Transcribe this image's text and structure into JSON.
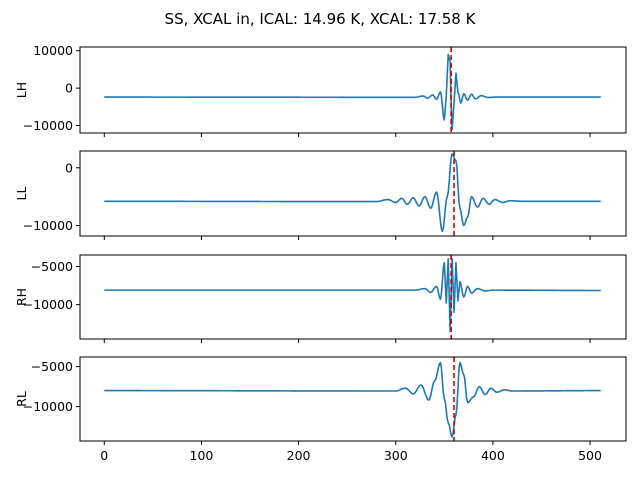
{
  "figure": {
    "title": "SS, XCAL in, ICAL: 14.96 K, XCAL: 17.58 K"
  },
  "chart_data": [
    {
      "type": "line",
      "ylabel": "LH",
      "xlim": [
        -25,
        537
      ],
      "ylim": [
        -12000,
        11000
      ],
      "xticks": [
        0,
        100,
        200,
        300,
        400,
        500
      ],
      "xtick_labels": [],
      "yticks": [
        -10000,
        0,
        10000
      ],
      "ytick_labels": [
        "−10000",
        "0",
        "10000"
      ],
      "marker_x": 357,
      "baseline": -2400,
      "points": [
        [
          0,
          -2400
        ],
        [
          320,
          -2450
        ],
        [
          328,
          -2100
        ],
        [
          333,
          -2700
        ],
        [
          338,
          -1800
        ],
        [
          342,
          -3000
        ],
        [
          346,
          -1000
        ],
        [
          350,
          -8500
        ],
        [
          352,
          -2000
        ],
        [
          354,
          9000
        ],
        [
          356,
          7000
        ],
        [
          357,
          -4000
        ],
        [
          358,
          -11000
        ],
        [
          360,
          -4000
        ],
        [
          362,
          4000
        ],
        [
          364,
          -1000
        ],
        [
          367,
          -4000
        ],
        [
          370,
          -1500
        ],
        [
          374,
          -3200
        ],
        [
          378,
          -1600
        ],
        [
          382,
          -2900
        ],
        [
          388,
          -2000
        ],
        [
          395,
          -2500
        ],
        [
          402,
          -2400
        ],
        [
          511,
          -2400
        ]
      ],
      "series": [
        {
          "values": "LH waveform"
        }
      ]
    },
    {
      "type": "line",
      "ylabel": "LL",
      "xlim": [
        -25,
        537
      ],
      "ylim": [
        -11800,
        2900
      ],
      "xticks": [
        0,
        100,
        200,
        300,
        400,
        500
      ],
      "xtick_labels": [],
      "yticks": [
        -10000,
        0
      ],
      "ytick_labels": [
        "−10000",
        "0"
      ],
      "marker_x": 360,
      "baseline": -5800,
      "points": [
        [
          0,
          -5800
        ],
        [
          280,
          -5850
        ],
        [
          292,
          -5500
        ],
        [
          300,
          -6000
        ],
        [
          306,
          -5300
        ],
        [
          312,
          -6300
        ],
        [
          318,
          -5200
        ],
        [
          324,
          -6600
        ],
        [
          330,
          -5000
        ],
        [
          336,
          -7000
        ],
        [
          342,
          -4200
        ],
        [
          348,
          -11000
        ],
        [
          353,
          -5000
        ],
        [
          358,
          2400
        ],
        [
          362,
          1200
        ],
        [
          366,
          -7000
        ],
        [
          370,
          -10000
        ],
        [
          374,
          -8500
        ],
        [
          378,
          -5000
        ],
        [
          384,
          -6800
        ],
        [
          390,
          -5300
        ],
        [
          396,
          -6300
        ],
        [
          402,
          -5500
        ],
        [
          410,
          -6000
        ],
        [
          418,
          -5700
        ],
        [
          430,
          -5800
        ],
        [
          511,
          -5800
        ]
      ],
      "series": [
        {
          "values": "LL waveform"
        }
      ]
    },
    {
      "type": "line",
      "ylabel": "RH",
      "xlim": [
        -25,
        537
      ],
      "ylim": [
        -14500,
        -3500
      ],
      "xticks": [
        0,
        100,
        200,
        300,
        400,
        500
      ],
      "xtick_labels": [],
      "yticks": [
        -10000,
        -5000
      ],
      "ytick_labels": [
        "−10000",
        "−5000"
      ],
      "marker_x": 357,
      "baseline": -8100,
      "points": [
        [
          0,
          -8100
        ],
        [
          320,
          -8100
        ],
        [
          330,
          -7900
        ],
        [
          336,
          -8400
        ],
        [
          342,
          -7600
        ],
        [
          346,
          -9300
        ],
        [
          350,
          -4500
        ],
        [
          352,
          -9800
        ],
        [
          354,
          -4000
        ],
        [
          356,
          -13500
        ],
        [
          358,
          -4000
        ],
        [
          360,
          -11000
        ],
        [
          362,
          -4500
        ],
        [
          364,
          -9500
        ],
        [
          366,
          -7000
        ],
        [
          370,
          -9000
        ],
        [
          374,
          -7600
        ],
        [
          378,
          -8500
        ],
        [
          384,
          -7900
        ],
        [
          392,
          -8200
        ],
        [
          400,
          -8100
        ],
        [
          511,
          -8150
        ]
      ],
      "series": [
        {
          "values": "RH waveform"
        }
      ]
    },
    {
      "type": "line",
      "ylabel": "RL",
      "xlim": [
        -25,
        537
      ],
      "ylim": [
        -14300,
        -3800
      ],
      "xticks": [
        0,
        100,
        200,
        300,
        400,
        500
      ],
      "xtick_labels": [
        "0",
        "100",
        "200",
        "300",
        "400",
        "500"
      ],
      "yticks": [
        -10000,
        -5000
      ],
      "ytick_labels": [
        "−10000",
        "−5000"
      ],
      "marker_x": 360,
      "baseline": -8000,
      "points": [
        [
          0,
          -8000
        ],
        [
          300,
          -8050
        ],
        [
          310,
          -7700
        ],
        [
          318,
          -8400
        ],
        [
          326,
          -7300
        ],
        [
          334,
          -9200
        ],
        [
          340,
          -6800
        ],
        [
          346,
          -4500
        ],
        [
          350,
          -9000
        ],
        [
          354,
          -12000
        ],
        [
          358,
          -13800
        ],
        [
          362,
          -11000
        ],
        [
          366,
          -4500
        ],
        [
          370,
          -6000
        ],
        [
          374,
          -9500
        ],
        [
          380,
          -8800
        ],
        [
          386,
          -7500
        ],
        [
          392,
          -8500
        ],
        [
          398,
          -7700
        ],
        [
          404,
          -8200
        ],
        [
          412,
          -7900
        ],
        [
          420,
          -8050
        ],
        [
          511,
          -8000
        ]
      ],
      "series": [
        {
          "values": "RL waveform"
        }
      ]
    }
  ]
}
